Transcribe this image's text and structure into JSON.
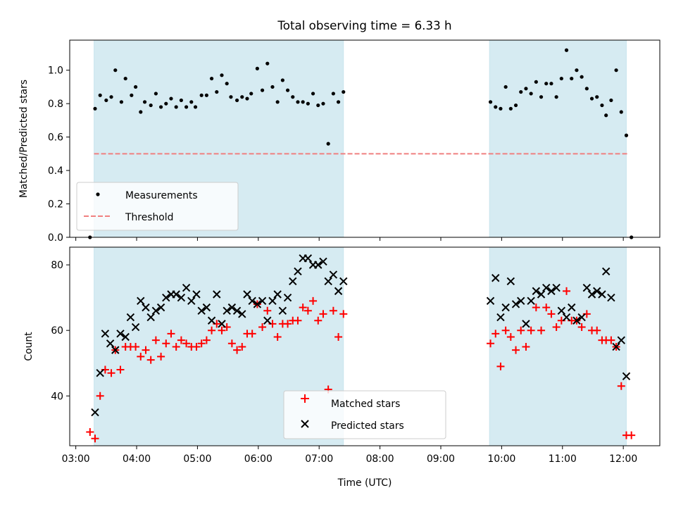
{
  "figure": {
    "title": "Total observing time = 6.33 h"
  },
  "chart_data": [
    {
      "type": "scatter",
      "panel": "top",
      "ylabel": "Matched/Predicted stars",
      "xlabel": "",
      "xlim": [
        "02:54",
        "12:36"
      ],
      "ylim": [
        0,
        1.18
      ],
      "yticks": [
        0.0,
        0.2,
        0.4,
        0.6,
        0.8,
        1.0
      ],
      "ytick_labels": [
        "0.0",
        "0.2",
        "0.4",
        "0.6",
        "0.8",
        "1.0"
      ],
      "grid": false,
      "legend_position": "lower-left",
      "spans": [
        {
          "start": "03:18",
          "end": "07:24",
          "color": "#add8e6"
        },
        {
          "start": "09:48",
          "end": "12:03",
          "color": "#add8e6"
        }
      ],
      "series": [
        {
          "name": "Measurements",
          "marker": "dot",
          "color": "#000000",
          "points": [
            [
              "03:14",
              0.0
            ],
            [
              "03:19",
              0.77
            ],
            [
              "03:24",
              0.85
            ],
            [
              "03:30",
              0.82
            ],
            [
              "03:35",
              0.84
            ],
            [
              "03:39",
              1.0
            ],
            [
              "03:45",
              0.81
            ],
            [
              "03:49",
              0.95
            ],
            [
              "03:55",
              0.85
            ],
            [
              "03:59",
              0.9
            ],
            [
              "04:04",
              0.75
            ],
            [
              "04:08",
              0.81
            ],
            [
              "04:14",
              0.79
            ],
            [
              "04:19",
              0.86
            ],
            [
              "04:24",
              0.78
            ],
            [
              "04:29",
              0.8
            ],
            [
              "04:34",
              0.83
            ],
            [
              "04:39",
              0.78
            ],
            [
              "04:44",
              0.82
            ],
            [
              "04:49",
              0.78
            ],
            [
              "04:54",
              0.81
            ],
            [
              "04:58",
              0.78
            ],
            [
              "05:04",
              0.85
            ],
            [
              "05:09",
              0.85
            ],
            [
              "05:14",
              0.95
            ],
            [
              "05:19",
              0.87
            ],
            [
              "05:24",
              0.97
            ],
            [
              "05:29",
              0.92
            ],
            [
              "05:33",
              0.84
            ],
            [
              "05:39",
              0.82
            ],
            [
              "05:44",
              0.84
            ],
            [
              "05:49",
              0.83
            ],
            [
              "05:53",
              0.86
            ],
            [
              "05:59",
              1.01
            ],
            [
              "06:04",
              0.88
            ],
            [
              "06:09",
              1.04
            ],
            [
              "06:14",
              0.9
            ],
            [
              "06:19",
              0.81
            ],
            [
              "06:24",
              0.94
            ],
            [
              "06:29",
              0.88
            ],
            [
              "06:34",
              0.84
            ],
            [
              "06:39",
              0.81
            ],
            [
              "06:44",
              0.81
            ],
            [
              "06:49",
              0.8
            ],
            [
              "06:54",
              0.86
            ],
            [
              "06:59",
              0.79
            ],
            [
              "07:04",
              0.8
            ],
            [
              "07:09",
              0.56
            ],
            [
              "07:14",
              0.86
            ],
            [
              "07:19",
              0.81
            ],
            [
              "07:24",
              0.87
            ],
            [
              "09:49",
              0.81
            ],
            [
              "09:54",
              0.78
            ],
            [
              "09:59",
              0.77
            ],
            [
              "10:04",
              0.9
            ],
            [
              "10:09",
              0.77
            ],
            [
              "10:14",
              0.79
            ],
            [
              "10:19",
              0.87
            ],
            [
              "10:24",
              0.89
            ],
            [
              "10:29",
              0.86
            ],
            [
              "10:34",
              0.93
            ],
            [
              "10:39",
              0.84
            ],
            [
              "10:44",
              0.92
            ],
            [
              "10:49",
              0.92
            ],
            [
              "10:54",
              0.84
            ],
            [
              "10:59",
              0.95
            ],
            [
              "11:04",
              1.12
            ],
            [
              "11:09",
              0.95
            ],
            [
              "11:14",
              1.0
            ],
            [
              "11:19",
              0.96
            ],
            [
              "11:24",
              0.89
            ],
            [
              "11:29",
              0.83
            ],
            [
              "11:34",
              0.84
            ],
            [
              "11:39",
              0.79
            ],
            [
              "11:43",
              0.73
            ],
            [
              "11:48",
              0.82
            ],
            [
              "11:53",
              1.0
            ],
            [
              "11:58",
              0.75
            ],
            [
              "12:03",
              0.61
            ],
            [
              "12:08",
              0.0
            ]
          ]
        },
        {
          "name": "Threshold",
          "marker": "dashed-line",
          "color": "#f08080",
          "x": [
            "03:18",
            "12:05"
          ],
          "y": [
            0.5,
            0.5
          ]
        }
      ]
    },
    {
      "type": "scatter",
      "panel": "bottom",
      "ylabel": "Count",
      "xlabel": "Time (UTC)",
      "xlim": [
        "02:54",
        "12:36"
      ],
      "ylim": [
        24.8,
        85.4
      ],
      "yticks": [
        40,
        60,
        80
      ],
      "ytick_labels": [
        "40",
        "60",
        "80"
      ],
      "xticks": [
        "03:00",
        "04:00",
        "05:00",
        "06:00",
        "07:00",
        "08:00",
        "09:00",
        "10:00",
        "11:00",
        "12:00"
      ],
      "xtick_labels": [
        "03:00",
        "04:00",
        "05:00",
        "06:00",
        "07:00",
        "08:00",
        "09:00",
        "10:00",
        "11:00",
        "12:00"
      ],
      "grid": false,
      "legend_position": "lower-center",
      "spans": [
        {
          "start": "03:18",
          "end": "07:24",
          "color": "#add8e6"
        },
        {
          "start": "09:48",
          "end": "12:03",
          "color": "#add8e6"
        }
      ],
      "series": [
        {
          "name": "Matched stars",
          "marker": "plus",
          "color": "#ff0000",
          "points": [
            [
              "03:14",
              29
            ],
            [
              "03:19",
              27
            ],
            [
              "03:24",
              40
            ],
            [
              "03:29",
              48
            ],
            [
              "03:35",
              47
            ],
            [
              "03:39",
              54
            ],
            [
              "03:44",
              48
            ],
            [
              "03:49",
              55
            ],
            [
              "03:54",
              55
            ],
            [
              "03:59",
              55
            ],
            [
              "04:04",
              52
            ],
            [
              "04:09",
              54
            ],
            [
              "04:14",
              51
            ],
            [
              "04:19",
              57
            ],
            [
              "04:24",
              52
            ],
            [
              "04:29",
              56
            ],
            [
              "04:34",
              59
            ],
            [
              "04:39",
              55
            ],
            [
              "04:44",
              57
            ],
            [
              "04:49",
              56
            ],
            [
              "04:54",
              55
            ],
            [
              "04:59",
              55
            ],
            [
              "05:04",
              56
            ],
            [
              "05:09",
              57
            ],
            [
              "05:14",
              60
            ],
            [
              "05:19",
              62
            ],
            [
              "05:24",
              60
            ],
            [
              "05:29",
              61
            ],
            [
              "05:34",
              56
            ],
            [
              "05:39",
              54
            ],
            [
              "05:44",
              55
            ],
            [
              "05:49",
              59
            ],
            [
              "05:54",
              59
            ],
            [
              "05:59",
              68
            ],
            [
              "06:04",
              61
            ],
            [
              "06:09",
              66
            ],
            [
              "06:14",
              62
            ],
            [
              "06:19",
              58
            ],
            [
              "06:24",
              62
            ],
            [
              "06:29",
              62
            ],
            [
              "06:34",
              63
            ],
            [
              "06:39",
              63
            ],
            [
              "06:44",
              67
            ],
            [
              "06:49",
              66
            ],
            [
              "06:54",
              69
            ],
            [
              "06:59",
              63
            ],
            [
              "07:04",
              65
            ],
            [
              "07:09",
              42
            ],
            [
              "07:14",
              66
            ],
            [
              "07:19",
              58
            ],
            [
              "07:24",
              65
            ],
            [
              "09:49",
              56
            ],
            [
              "09:54",
              59
            ],
            [
              "09:59",
              49
            ],
            [
              "10:04",
              60
            ],
            [
              "10:09",
              58
            ],
            [
              "10:14",
              54
            ],
            [
              "10:19",
              60
            ],
            [
              "10:24",
              55
            ],
            [
              "10:29",
              60
            ],
            [
              "10:34",
              67
            ],
            [
              "10:39",
              60
            ],
            [
              "10:44",
              67
            ],
            [
              "10:49",
              65
            ],
            [
              "10:54",
              61
            ],
            [
              "10:59",
              63
            ],
            [
              "11:04",
              72
            ],
            [
              "11:09",
              63
            ],
            [
              "11:14",
              63
            ],
            [
              "11:19",
              61
            ],
            [
              "11:24",
              65
            ],
            [
              "11:29",
              60
            ],
            [
              "11:34",
              60
            ],
            [
              "11:39",
              57
            ],
            [
              "11:43",
              57
            ],
            [
              "11:48",
              57
            ],
            [
              "11:53",
              55
            ],
            [
              "11:58",
              43
            ],
            [
              "12:03",
              28
            ],
            [
              "12:08",
              28
            ]
          ]
        },
        {
          "name": "Predicted stars",
          "marker": "x",
          "color": "#000000",
          "points": [
            [
              "03:19",
              35
            ],
            [
              "03:24",
              47
            ],
            [
              "03:29",
              59
            ],
            [
              "03:34",
              56
            ],
            [
              "03:39",
              54
            ],
            [
              "03:44",
              59
            ],
            [
              "03:49",
              58
            ],
            [
              "03:54",
              64
            ],
            [
              "03:59",
              61
            ],
            [
              "04:04",
              69
            ],
            [
              "04:09",
              67
            ],
            [
              "04:14",
              64
            ],
            [
              "04:19",
              66
            ],
            [
              "04:24",
              67
            ],
            [
              "04:29",
              70
            ],
            [
              "04:34",
              71
            ],
            [
              "04:39",
              71
            ],
            [
              "04:44",
              70
            ],
            [
              "04:49",
              73
            ],
            [
              "04:54",
              69
            ],
            [
              "04:59",
              71
            ],
            [
              "05:04",
              66
            ],
            [
              "05:09",
              67
            ],
            [
              "05:14",
              63
            ],
            [
              "05:19",
              71
            ],
            [
              "05:24",
              62
            ],
            [
              "05:29",
              66
            ],
            [
              "05:34",
              67
            ],
            [
              "05:39",
              66
            ],
            [
              "05:44",
              65
            ],
            [
              "05:49",
              71
            ],
            [
              "05:54",
              69
            ],
            [
              "05:59",
              68
            ],
            [
              "06:04",
              69
            ],
            [
              "06:09",
              63
            ],
            [
              "06:14",
              69
            ],
            [
              "06:19",
              71
            ],
            [
              "06:24",
              66
            ],
            [
              "06:29",
              70
            ],
            [
              "06:34",
              75
            ],
            [
              "06:39",
              78
            ],
            [
              "06:44",
              82
            ],
            [
              "06:49",
              82
            ],
            [
              "06:54",
              80
            ],
            [
              "06:59",
              80
            ],
            [
              "07:04",
              81
            ],
            [
              "07:09",
              75
            ],
            [
              "07:14",
              77
            ],
            [
              "07:19",
              72
            ],
            [
              "07:24",
              75
            ],
            [
              "09:49",
              69
            ],
            [
              "09:54",
              76
            ],
            [
              "09:59",
              64
            ],
            [
              "10:04",
              67
            ],
            [
              "10:09",
              75
            ],
            [
              "10:14",
              68
            ],
            [
              "10:19",
              69
            ],
            [
              "10:24",
              62
            ],
            [
              "10:29",
              69
            ],
            [
              "10:34",
              72
            ],
            [
              "10:39",
              71
            ],
            [
              "10:44",
              73
            ],
            [
              "10:49",
              72
            ],
            [
              "10:54",
              73
            ],
            [
              "10:59",
              66
            ],
            [
              "11:04",
              64
            ],
            [
              "11:09",
              67
            ],
            [
              "11:14",
              63
            ],
            [
              "11:19",
              64
            ],
            [
              "11:24",
              73
            ],
            [
              "11:29",
              71
            ],
            [
              "11:34",
              72
            ],
            [
              "11:39",
              71
            ],
            [
              "11:43",
              78
            ],
            [
              "11:48",
              70
            ],
            [
              "11:53",
              55
            ],
            [
              "11:58",
              57
            ],
            [
              "12:03",
              46
            ]
          ]
        }
      ]
    }
  ]
}
